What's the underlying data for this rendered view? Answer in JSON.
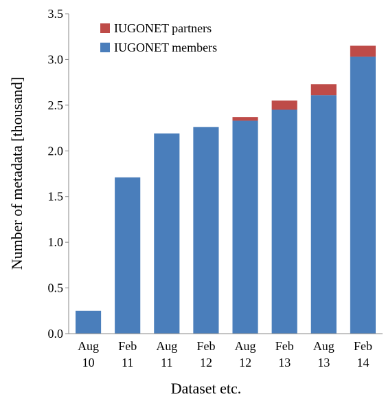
{
  "chart_data": {
    "type": "stacked_bar",
    "xlabel": "Dataset etc.",
    "ylabel": "Number of metadata [thousand]",
    "categories": [
      [
        "Aug",
        "10"
      ],
      [
        "Feb",
        "11"
      ],
      [
        "Aug",
        "11"
      ],
      [
        "Feb",
        "12"
      ],
      [
        "Aug",
        "12"
      ],
      [
        "Feb",
        "13"
      ],
      [
        "Aug",
        "13"
      ],
      [
        "Feb",
        "14"
      ]
    ],
    "series": [
      {
        "name": "IUGONET members",
        "color": "#4a7ebb",
        "values": [
          0.25,
          1.71,
          2.19,
          2.26,
          2.33,
          2.45,
          2.61,
          3.03
        ]
      },
      {
        "name": "IUGONET partners",
        "color": "#be4b48",
        "values": [
          0,
          0,
          0,
          0,
          0.04,
          0.1,
          0.12,
          0.12
        ]
      }
    ],
    "ylim": [
      0,
      3.5
    ],
    "yticks": [
      {
        "value": 0,
        "label": "0.0"
      },
      0.5,
      {
        "value": 1,
        "label": "1.0"
      },
      1.5,
      {
        "value": 2,
        "label": "2.0"
      },
      2.5,
      {
        "value": 3,
        "label": "3.0"
      },
      3.5
    ],
    "legend": "upper left"
  }
}
